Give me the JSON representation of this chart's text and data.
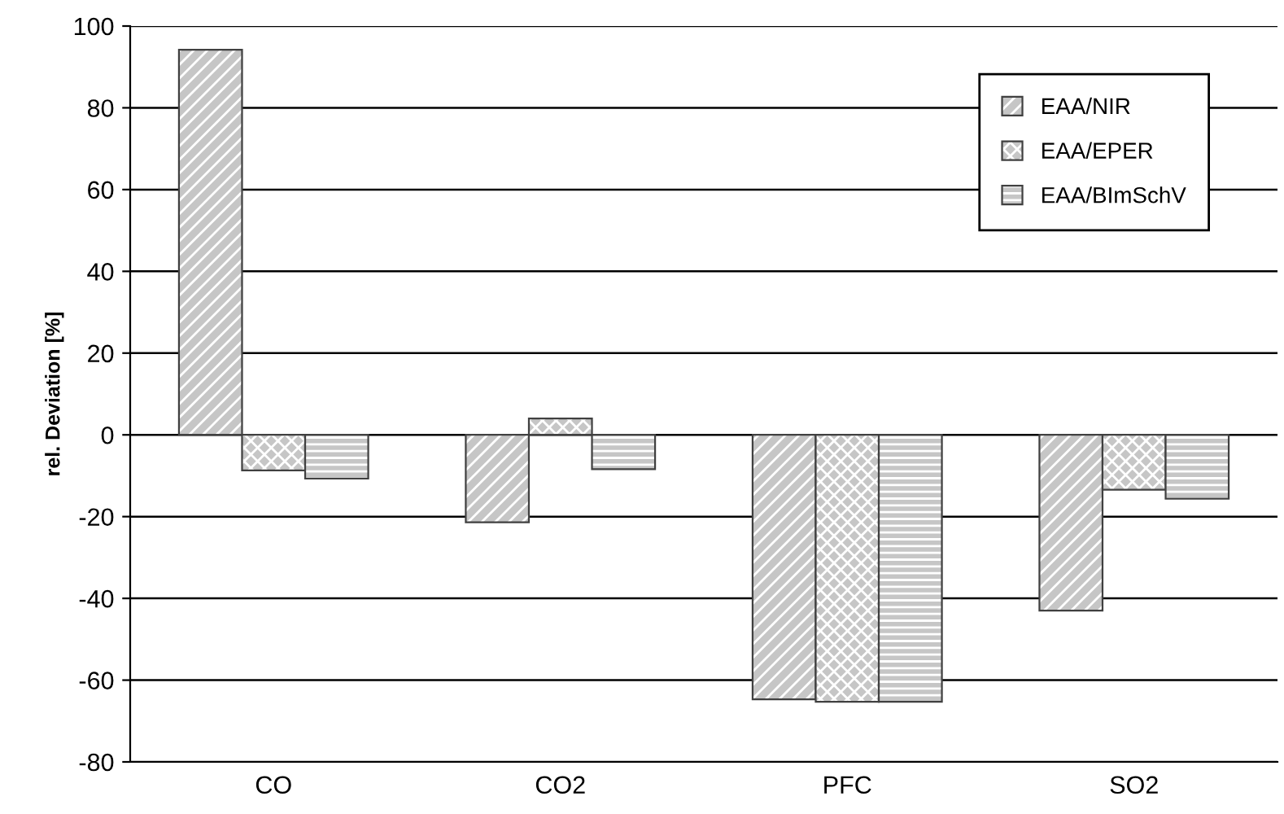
{
  "chart_data": {
    "type": "bar",
    "ylabel": "rel. Deviation [%]",
    "categories": [
      "CO",
      "CO2",
      "PFC",
      "SO2"
    ],
    "series": [
      {
        "name": "EAA/NIR",
        "color": "#404040",
        "values": [
          94.2,
          -21.4,
          -64.7,
          -43
        ]
      },
      {
        "name": "EAA/EPER",
        "color": "#404040",
        "values": [
          -8.7,
          4,
          -65.3,
          -13.4
        ]
      },
      {
        "name": "EAA/BImSchV",
        "color": "#404040",
        "values": [
          -10.7,
          -8.4,
          -65.3,
          -15.6
        ]
      }
    ],
    "ylim": [
      -80,
      100
    ],
    "yticks": [
      -80,
      -60,
      -40,
      -20,
      0,
      20,
      40,
      60,
      80,
      100
    ],
    "grid": "y",
    "legend": "top right"
  }
}
